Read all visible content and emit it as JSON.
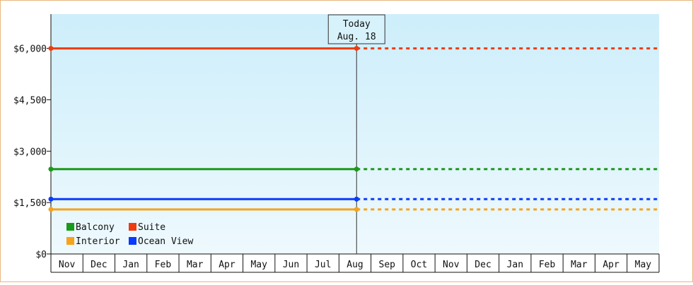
{
  "chart_data": {
    "type": "line",
    "title": "",
    "xlabel": "",
    "ylabel": "",
    "ylim": [
      0,
      7000
    ],
    "yticks": [
      0,
      1500,
      3000,
      4500,
      6000
    ],
    "ytick_labels": [
      "$0",
      "$1,500",
      "$3,000",
      "$4,500",
      "$6,000"
    ],
    "categories": [
      "Nov",
      "Dec",
      "Jan",
      "Feb",
      "Mar",
      "Apr",
      "May",
      "Jun",
      "Jul",
      "Aug",
      "Sep",
      "Oct",
      "Nov",
      "Dec",
      "Jan",
      "Feb",
      "Mar",
      "Apr",
      "May"
    ],
    "today_marker": {
      "line1": "Today",
      "line2": "Aug. 18",
      "index": 9.55
    },
    "series": [
      {
        "name": "Balcony",
        "color": "#1a9a1a",
        "value": 2475,
        "observed": [
          0,
          9.55
        ],
        "projected": [
          9.55,
          19
        ]
      },
      {
        "name": "Suite",
        "color": "#ee3b0f",
        "value": 6000,
        "observed": [
          0,
          9.55
        ],
        "projected": [
          9.55,
          19
        ]
      },
      {
        "name": "Interior",
        "color": "#f5a31a",
        "value": 1300,
        "observed": [
          0,
          9.55
        ],
        "projected": [
          9.55,
          19
        ]
      },
      {
        "name": "Ocean View",
        "color": "#0a3aff",
        "value": 1600,
        "observed": [
          0,
          9.55
        ],
        "projected": [
          9.55,
          19
        ]
      }
    ],
    "grid": false,
    "legend_position": "bottom-left"
  }
}
